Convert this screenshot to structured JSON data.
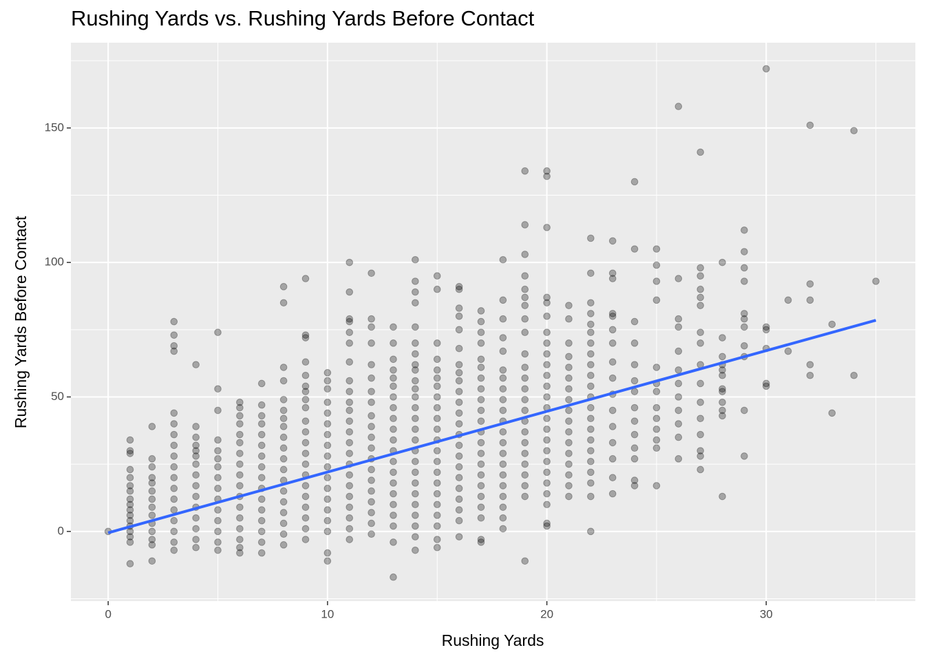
{
  "chart_data": {
    "type": "scatter",
    "title": "Rushing Yards vs. Rushing Yards Before Contact",
    "x_label": "Rushing Yards",
    "y_label": "Rushing Yards Before Contact",
    "xlim": [
      -1.7,
      36.8
    ],
    "ylim": [
      -25.9,
      181.7
    ],
    "xticks": [
      0,
      10,
      20,
      30
    ],
    "yticks": [
      0,
      50,
      100,
      150
    ],
    "x_minor_grid": [
      5,
      15,
      25,
      35
    ],
    "y_minor_grid": [
      -25,
      25,
      75,
      125,
      175
    ],
    "grid": true,
    "point_color": "#000000",
    "point_alpha": 0.3,
    "trend": {
      "x": [
        0,
        35
      ],
      "y": [
        -0.5,
        78.5
      ],
      "color": "#3366ff"
    },
    "columns": [
      {
        "x": 0,
        "y": [
          0
        ]
      },
      {
        "x": 1,
        "y": [
          -12,
          -4,
          -2,
          0,
          2,
          4,
          6,
          8,
          10,
          12,
          15,
          17,
          20,
          23,
          29,
          30,
          34
        ]
      },
      {
        "x": 2,
        "y": [
          -11,
          -5,
          -3,
          0,
          3,
          6,
          9,
          12,
          15,
          18,
          20,
          24,
          27,
          39
        ]
      },
      {
        "x": 3,
        "y": [
          -7,
          -4,
          0,
          4,
          8,
          12,
          16,
          20,
          24,
          28,
          32,
          36,
          40,
          44,
          67,
          69,
          73,
          78
        ]
      },
      {
        "x": 4,
        "y": [
          -6,
          -3,
          1,
          5,
          9,
          13,
          17,
          21,
          25,
          28,
          30,
          32,
          35,
          39,
          62
        ]
      },
      {
        "x": 5,
        "y": [
          -7,
          -4,
          0,
          4,
          8,
          12,
          16,
          20,
          24,
          27,
          30,
          34,
          45,
          53,
          74
        ]
      },
      {
        "x": 6,
        "y": [
          -8,
          -6,
          -3,
          1,
          5,
          9,
          13,
          17,
          21,
          25,
          29,
          33,
          36,
          40,
          43,
          46,
          48
        ]
      },
      {
        "x": 7,
        "y": [
          -8,
          -4,
          0,
          4,
          8,
          12,
          16,
          20,
          24,
          28,
          32,
          36,
          40,
          43,
          47,
          55
        ]
      },
      {
        "x": 8,
        "y": [
          -5,
          -1,
          3,
          7,
          11,
          15,
          19,
          23,
          27,
          31,
          35,
          39,
          42,
          45,
          49,
          56,
          61,
          85,
          91
        ]
      },
      {
        "x": 9,
        "y": [
          -3,
          1,
          5,
          9,
          13,
          17,
          21,
          25,
          29,
          33,
          37,
          41,
          46,
          49,
          52,
          54,
          58,
          63,
          72,
          73,
          94
        ]
      },
      {
        "x": 10,
        "y": [
          -11,
          -8,
          0,
          4,
          8,
          12,
          16,
          20,
          24,
          28,
          32,
          36,
          40,
          44,
          48,
          53,
          56,
          59
        ]
      },
      {
        "x": 11,
        "y": [
          -3,
          1,
          5,
          9,
          13,
          17,
          21,
          25,
          29,
          33,
          37,
          41,
          45,
          48,
          52,
          56,
          63,
          70,
          74,
          78,
          79,
          89,
          100
        ]
      },
      {
        "x": 12,
        "y": [
          -1,
          3,
          7,
          11,
          15,
          19,
          23,
          27,
          31,
          35,
          39,
          43,
          48,
          52,
          57,
          62,
          70,
          76,
          79,
          96
        ]
      },
      {
        "x": 13,
        "y": [
          -17,
          -4,
          2,
          6,
          10,
          14,
          18,
          22,
          26,
          30,
          34,
          38,
          42,
          46,
          50,
          54,
          57,
          60,
          64,
          70,
          76
        ]
      },
      {
        "x": 14,
        "y": [
          -7,
          -2,
          2,
          6,
          10,
          14,
          18,
          22,
          26,
          30,
          34,
          38,
          42,
          46,
          50,
          53,
          56,
          60,
          62,
          66,
          70,
          76,
          85,
          89,
          93,
          101
        ]
      },
      {
        "x": 15,
        "y": [
          -6,
          -3,
          2,
          6,
          10,
          14,
          18,
          22,
          26,
          30,
          34,
          38,
          42,
          46,
          50,
          54,
          57,
          60,
          64,
          70,
          90,
          95
        ]
      },
      {
        "x": 16,
        "y": [
          -2,
          4,
          8,
          12,
          16,
          20,
          24,
          28,
          32,
          36,
          40,
          44,
          48,
          52,
          56,
          59,
          62,
          68,
          75,
          80,
          83,
          90,
          91
        ]
      },
      {
        "x": 17,
        "y": [
          -4,
          -3,
          5,
          9,
          13,
          17,
          21,
          25,
          29,
          33,
          37,
          41,
          45,
          49,
          53,
          57,
          61,
          64,
          70,
          74,
          78,
          82
        ]
      },
      {
        "x": 18,
        "y": [
          1,
          5,
          9,
          13,
          17,
          21,
          25,
          29,
          33,
          37,
          41,
          45,
          49,
          53,
          57,
          60,
          67,
          72,
          79,
          86,
          101
        ]
      },
      {
        "x": 19,
        "y": [
          -11,
          13,
          17,
          21,
          25,
          29,
          33,
          37,
          41,
          45,
          49,
          53,
          57,
          61,
          66,
          74,
          79,
          84,
          87,
          90,
          95,
          103,
          114,
          134
        ]
      },
      {
        "x": 20,
        "y": [
          2,
          3,
          10,
          14,
          18,
          22,
          26,
          30,
          34,
          38,
          42,
          46,
          50,
          54,
          58,
          62,
          66,
          70,
          74,
          80,
          85,
          87,
          113,
          132,
          134
        ]
      },
      {
        "x": 21,
        "y": [
          13,
          17,
          21,
          25,
          29,
          33,
          37,
          41,
          45,
          49,
          53,
          57,
          61,
          65,
          70,
          79,
          84
        ]
      },
      {
        "x": 22,
        "y": [
          0,
          13,
          18,
          22,
          26,
          30,
          34,
          38,
          42,
          46,
          50,
          54,
          58,
          62,
          66,
          70,
          74,
          77,
          81,
          85,
          96,
          109
        ]
      },
      {
        "x": 23,
        "y": [
          14,
          20,
          27,
          33,
          39,
          45,
          51,
          57,
          63,
          70,
          75,
          80,
          81,
          94,
          96,
          108
        ]
      },
      {
        "x": 24,
        "y": [
          17,
          19,
          27,
          31,
          36,
          41,
          46,
          52,
          56,
          62,
          70,
          78,
          105,
          130
        ]
      },
      {
        "x": 25,
        "y": [
          17,
          31,
          34,
          38,
          42,
          46,
          52,
          55,
          61,
          86,
          93,
          99,
          105
        ]
      },
      {
        "x": 26,
        "y": [
          27,
          35,
          40,
          45,
          50,
          55,
          60,
          67,
          76,
          79,
          94,
          158
        ]
      },
      {
        "x": 27,
        "y": [
          23,
          28,
          30,
          36,
          42,
          48,
          55,
          62,
          70,
          74,
          84,
          87,
          90,
          95,
          98,
          141
        ]
      },
      {
        "x": 28,
        "y": [
          13,
          43,
          45,
          48,
          52,
          53,
          58,
          60,
          62,
          65,
          72,
          100
        ]
      },
      {
        "x": 29,
        "y": [
          28,
          45,
          65,
          69,
          76,
          79,
          81,
          93,
          98,
          104,
          112
        ]
      },
      {
        "x": 30,
        "y": [
          54,
          55,
          68,
          75,
          76,
          172
        ]
      },
      {
        "x": 31,
        "y": [
          67,
          86
        ]
      },
      {
        "x": 32,
        "y": [
          58,
          62,
          86,
          92,
          151
        ]
      },
      {
        "x": 33,
        "y": [
          44,
          77
        ]
      },
      {
        "x": 34,
        "y": [
          58,
          149
        ]
      },
      {
        "x": 35,
        "y": [
          93
        ]
      }
    ]
  }
}
